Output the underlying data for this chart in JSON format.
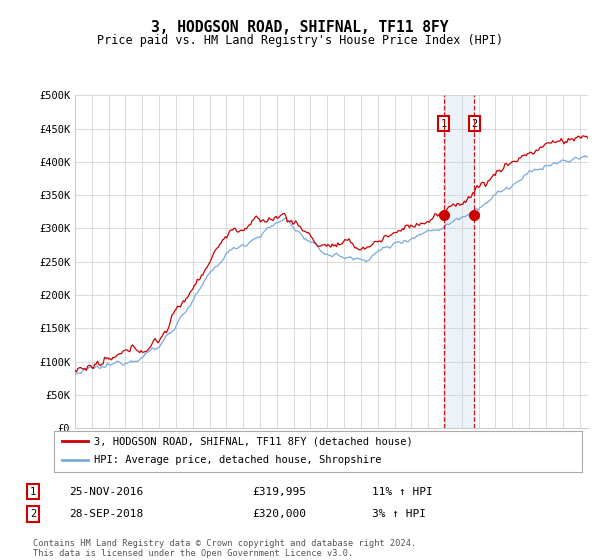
{
  "title": "3, HODGSON ROAD, SHIFNAL, TF11 8FY",
  "subtitle": "Price paid vs. HM Land Registry's House Price Index (HPI)",
  "ytick_values": [
    0,
    50000,
    100000,
    150000,
    200000,
    250000,
    300000,
    350000,
    400000,
    450000,
    500000
  ],
  "xlim_start": 1995.0,
  "xlim_end": 2025.5,
  "ylim": [
    0,
    500000
  ],
  "marker1_x": 2016.92,
  "marker1_y": 319995,
  "marker1_label": "1",
  "marker1_date": "25-NOV-2016",
  "marker1_price": "£319,995",
  "marker1_hpi": "11% ↑ HPI",
  "marker2_x": 2018.75,
  "marker2_y": 320000,
  "marker2_label": "2",
  "marker2_date": "28-SEP-2018",
  "marker2_price": "£320,000",
  "marker2_hpi": "3% ↑ HPI",
  "line1_color": "#cc0000",
  "line2_color": "#7aaadd",
  "shade_color": "#c8dcf0",
  "grid_color": "#cccccc",
  "marker_box_color": "#cc0000",
  "vline_color": "#cc0000",
  "legend_label1": "3, HODGSON ROAD, SHIFNAL, TF11 8FY (detached house)",
  "legend_label2": "HPI: Average price, detached house, Shropshire",
  "footnote": "Contains HM Land Registry data © Crown copyright and database right 2024.\nThis data is licensed under the Open Government Licence v3.0.",
  "background_color": "#ffffff",
  "plot_bg_color": "#ffffff"
}
